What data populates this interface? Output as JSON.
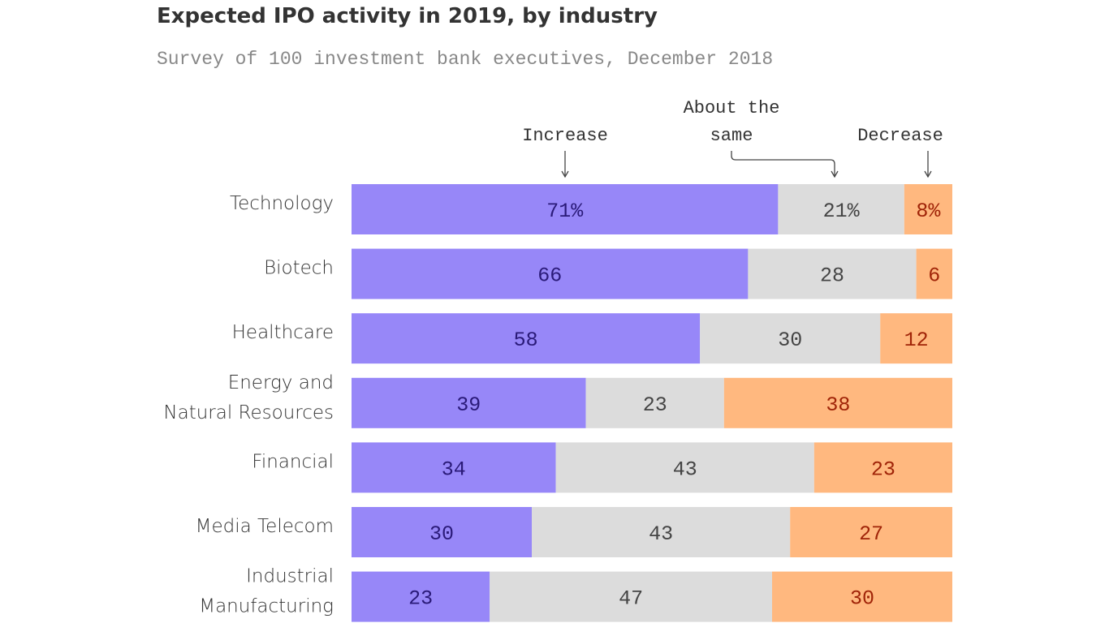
{
  "chart_data": {
    "type": "bar",
    "orientation": "horizontal",
    "stacked": true,
    "title": "Expected IPO activity in 2019, by industry",
    "subtitle": "Survey of 100 investment bank executives, December 2018",
    "categories": [
      [
        "Technology"
      ],
      [
        "Biotech"
      ],
      [
        "Healthcare"
      ],
      [
        "Energy and",
        "Natural Resources"
      ],
      [
        "Financial"
      ],
      [
        "Media Telecom"
      ],
      [
        "Industrial",
        "Manufacturing"
      ]
    ],
    "series": [
      {
        "name": "Increase",
        "values": [
          71,
          66,
          58,
          39,
          34,
          30,
          23
        ],
        "labels": [
          "71%",
          "66",
          "58",
          "39",
          "34",
          "30",
          "23"
        ],
        "color": "#9787f8",
        "text_color": "#2a1a78"
      },
      {
        "name": "About the same",
        "values": [
          21,
          28,
          30,
          23,
          43,
          43,
          47
        ],
        "labels": [
          "21%",
          "28",
          "30",
          "23",
          "43",
          "43",
          "47"
        ],
        "color": "#dcdcdc",
        "text_color": "#444444"
      },
      {
        "name": "Decrease",
        "values": [
          8,
          6,
          12,
          38,
          23,
          27,
          30
        ],
        "labels": [
          "8%",
          "6",
          "12",
          "38",
          "23",
          "27",
          "30"
        ],
        "color": "#ffb87f",
        "text_color": "#a02408"
      }
    ],
    "annotations": {
      "increase": [
        "Increase"
      ],
      "same": [
        "About the",
        "same"
      ],
      "decrease": [
        "Decrease"
      ]
    },
    "xlim": [
      0,
      100
    ],
    "grid": false,
    "legend": "annotations above first bar"
  }
}
